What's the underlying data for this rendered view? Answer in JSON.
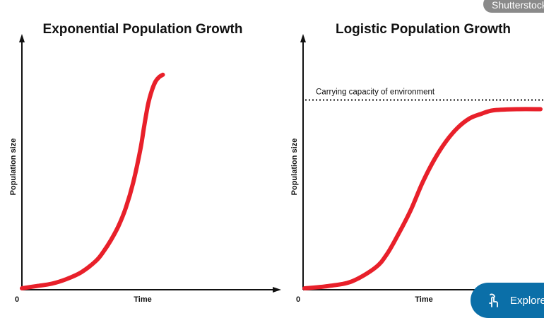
{
  "watermark": {
    "text": "Shutterstock"
  },
  "explore_button": {
    "label": "Explore",
    "icon": "touch-icon"
  },
  "colors": {
    "curve": "#e8202a",
    "axis": "#111111",
    "button": "#0b6fa8"
  },
  "chart_data": [
    {
      "type": "line",
      "title": "Exponential Population Growth",
      "xlabel": "Time",
      "ylabel": "Population size",
      "origin_label": "0",
      "model": "exponential",
      "xlim": [
        0,
        10
      ],
      "ylim": [
        0,
        100
      ],
      "series": [
        {
          "x": [
            0,
            1,
            2,
            3,
            4,
            5,
            5.5,
            6,
            6.5,
            7,
            7.5,
            8,
            8.25,
            8.5,
            8.75,
            9,
            9.25,
            9.5
          ],
          "values": [
            0,
            1,
            2,
            4,
            7,
            12,
            16,
            21,
            27,
            35,
            46,
            61,
            71,
            80,
            86,
            90,
            92,
            93
          ]
        }
      ]
    },
    {
      "type": "line",
      "title": "Logistic Population Growth",
      "xlabel": "Time",
      "ylabel": "Population size",
      "origin_label": "0",
      "model": "logistic",
      "xlim": [
        0,
        10
      ],
      "ylim": [
        0,
        100
      ],
      "annotation": {
        "text": "Carrying capacity of environment",
        "y": 82
      },
      "series": [
        {
          "x": [
            0,
            1,
            2,
            3,
            3.5,
            4,
            4.5,
            5,
            5.5,
            6,
            6.5,
            7,
            7.5,
            8,
            9,
            10
          ],
          "values": [
            0,
            1,
            3,
            9,
            15,
            24,
            34,
            46,
            56,
            64,
            70,
            74,
            76,
            77.5,
            78,
            78
          ]
        }
      ]
    }
  ]
}
